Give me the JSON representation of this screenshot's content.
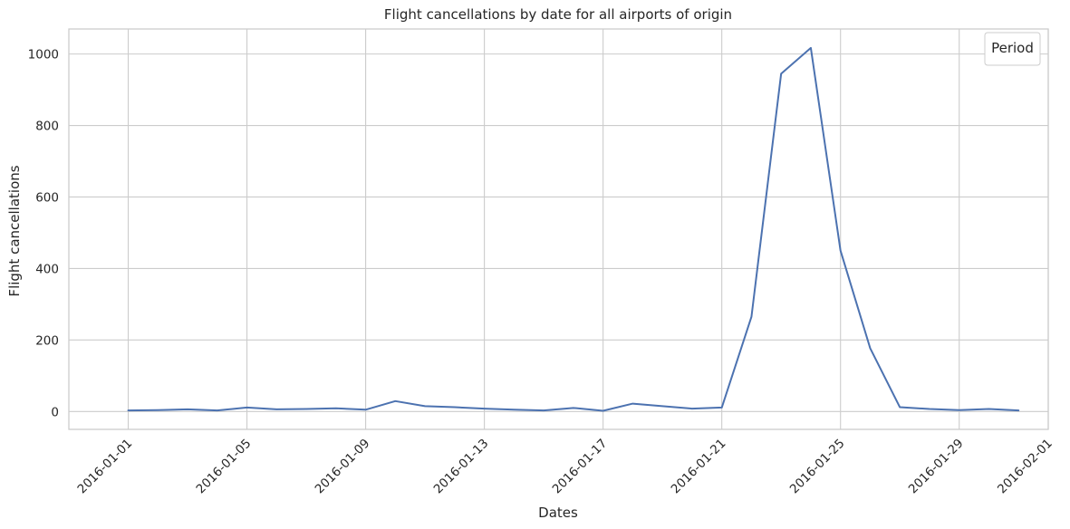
{
  "chart_data": {
    "type": "line",
    "title": "Flight cancellations by date for all airports of origin",
    "xlabel": "Dates",
    "ylabel": "Flight cancellations",
    "legend": {
      "title": "Period",
      "placement": "top-right",
      "entries": []
    },
    "grid": true,
    "xlim": [
      "2015-12-30",
      "2016-02-01"
    ],
    "ylim": [
      -50,
      1070
    ],
    "x_ticks": [
      "2016-01-01",
      "2016-01-05",
      "2016-01-09",
      "2016-01-13",
      "2016-01-17",
      "2016-01-21",
      "2016-01-25",
      "2016-01-29",
      "2016-02-01"
    ],
    "y_ticks": [
      0,
      200,
      400,
      600,
      800,
      1000
    ],
    "series_color": "#4c72b0",
    "series": [
      {
        "x": [
          "2016-01-01",
          "2016-01-02",
          "2016-01-03",
          "2016-01-04",
          "2016-01-05",
          "2016-01-06",
          "2016-01-07",
          "2016-01-08",
          "2016-01-09",
          "2016-01-10",
          "2016-01-11",
          "2016-01-12",
          "2016-01-13",
          "2016-01-14",
          "2016-01-15",
          "2016-01-16",
          "2016-01-17",
          "2016-01-18",
          "2016-01-19",
          "2016-01-20",
          "2016-01-21",
          "2016-01-22",
          "2016-01-23",
          "2016-01-24",
          "2016-01-25",
          "2016-01-26",
          "2016-01-27",
          "2016-01-28",
          "2016-01-29",
          "2016-01-30",
          "2016-01-31"
        ],
        "values": [
          3,
          4,
          6,
          3,
          11,
          6,
          7,
          9,
          5,
          29,
          15,
          12,
          8,
          5,
          3,
          10,
          2,
          22,
          15,
          8,
          11,
          265,
          945,
          1017,
          450,
          177,
          12,
          7,
          4,
          7,
          3
        ]
      }
    ]
  }
}
